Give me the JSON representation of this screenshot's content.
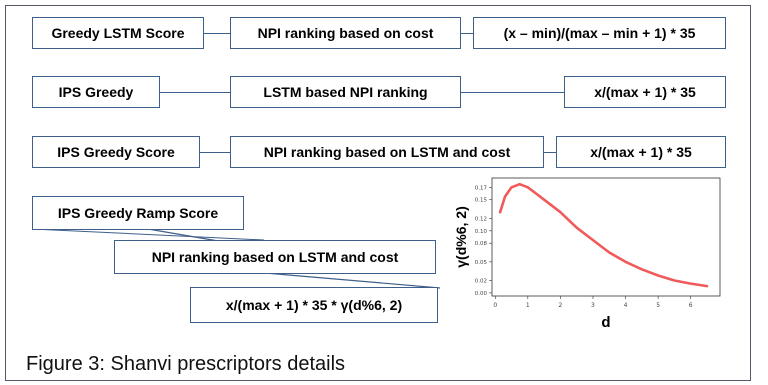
{
  "rows": [
    {
      "label": "Greedy LSTM Score",
      "ranking": "NPI ranking based on cost",
      "formula": "(x – min)/(max – min + 1) * 35"
    },
    {
      "label": "IPS Greedy",
      "ranking": "LSTM based NPI ranking",
      "formula": "x/(max + 1) * 35"
    },
    {
      "label": "IPS Greedy Score",
      "ranking": "NPI ranking based on LSTM and cost",
      "formula": "x/(max + 1) * 35"
    },
    {
      "label": "IPS Greedy Ramp Score",
      "ranking": "NPI ranking based on LSTM and cost",
      "formula": "x/(max + 1) * 35 * γ(d%6, 2)"
    }
  ],
  "caption": "Figure 3: Shanvi prescriptors details",
  "colors": {
    "box_border": "#3e5f8a",
    "curve": "#f05a5a"
  },
  "chart_data": {
    "type": "line",
    "xlabel": "d",
    "ylabel": "γ(d%6, 2)",
    "xticks": [
      0,
      1,
      2,
      3,
      4,
      5,
      6
    ],
    "yticks": [
      0.0,
      0.02,
      0.05,
      0.08,
      0.1,
      0.12,
      0.15,
      0.17
    ],
    "xlim": [
      -0.1,
      6.9
    ],
    "ylim": [
      -0.005,
      0.185
    ],
    "grid": false,
    "series": [
      {
        "x": [
          0.15,
          0.3,
          0.5,
          0.75,
          1.0,
          1.25,
          1.5,
          2.0,
          2.5,
          3.0,
          3.5,
          4.0,
          4.5,
          5.0,
          5.5,
          6.0,
          6.5
        ],
        "y": [
          0.13,
          0.155,
          0.17,
          0.175,
          0.17,
          0.16,
          0.15,
          0.13,
          0.105,
          0.085,
          0.065,
          0.05,
          0.038,
          0.028,
          0.02,
          0.015,
          0.011
        ]
      }
    ]
  }
}
